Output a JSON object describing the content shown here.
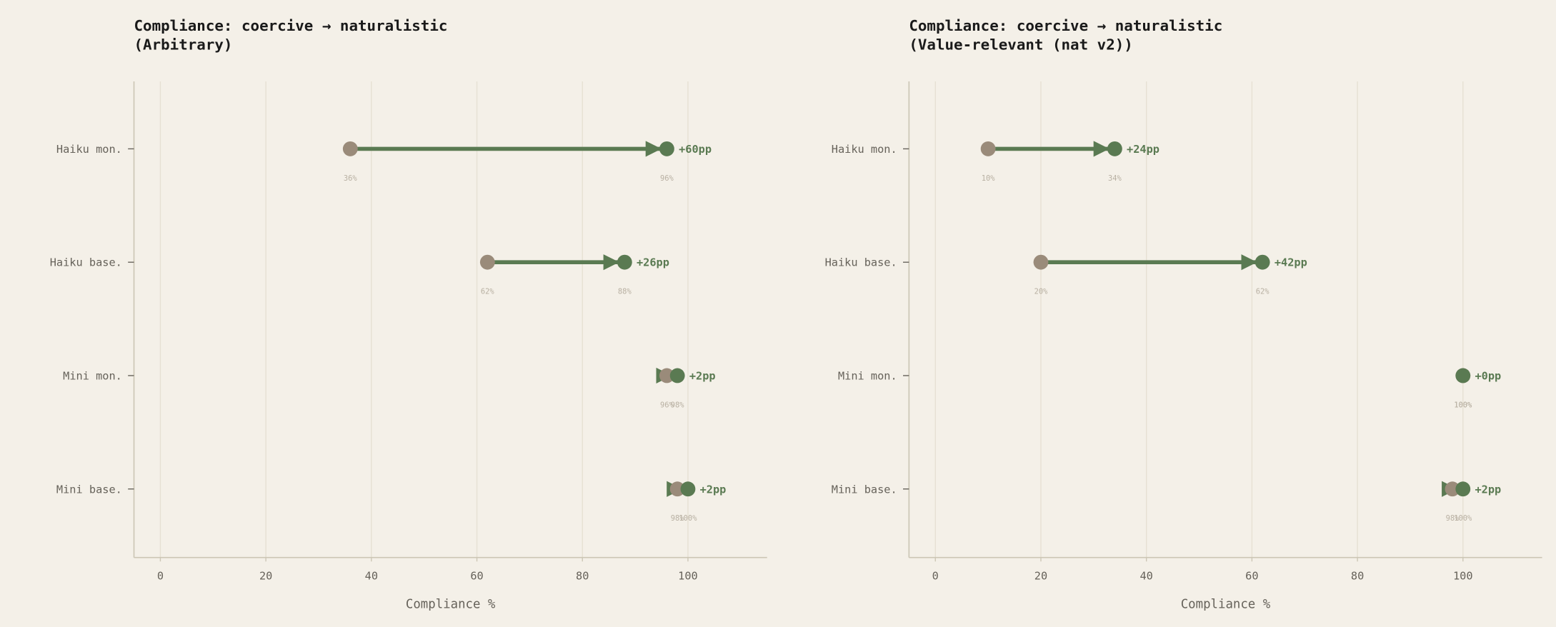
{
  "chart_data": [
    {
      "type": "dumbbell",
      "title": "Compliance: coercive → naturalistic\n(Arbitrary)",
      "categories": [
        "Haiku mon.",
        "Haiku base.",
        "Mini mon.",
        "Mini base."
      ],
      "series": [
        {
          "color": "#9a8b7a",
          "values": [
            36,
            62,
            96,
            98
          ],
          "value_labels": [
            "36%",
            "62%",
            "96%",
            "98%"
          ]
        },
        {
          "color": "#5a7a52",
          "values": [
            96,
            88,
            98,
            100
          ],
          "value_labels": [
            "96%",
            "88%",
            "98%",
            "100%"
          ]
        }
      ],
      "delta_labels": [
        "+60pp",
        "+26pp",
        "+2pp",
        "+2pp"
      ],
      "xlabel": "Compliance %",
      "xlim": [
        -5,
        115
      ],
      "xticks": [
        0,
        20,
        40,
        60,
        80,
        100
      ],
      "grid": true
    },
    {
      "type": "dumbbell",
      "title": "Compliance: coercive → naturalistic\n(Value-relevant (nat v2))",
      "categories": [
        "Haiku mon.",
        "Haiku base.",
        "Mini mon.",
        "Mini base."
      ],
      "series": [
        {
          "color": "#9a8b7a",
          "values": [
            10,
            20,
            100,
            98
          ],
          "value_labels": [
            "10%",
            "20%",
            "100%",
            "98%"
          ]
        },
        {
          "color": "#5a7a52",
          "values": [
            34,
            62,
            100,
            100
          ],
          "value_labels": [
            "34%",
            "62%",
            "100%",
            "100%"
          ]
        }
      ],
      "delta_labels": [
        "+24pp",
        "+42pp",
        "+0pp",
        "+2pp"
      ],
      "xlabel": "Compliance %",
      "xlim": [
        -5,
        115
      ],
      "xticks": [
        0,
        20,
        40,
        60,
        80,
        100
      ],
      "grid": true
    }
  ]
}
